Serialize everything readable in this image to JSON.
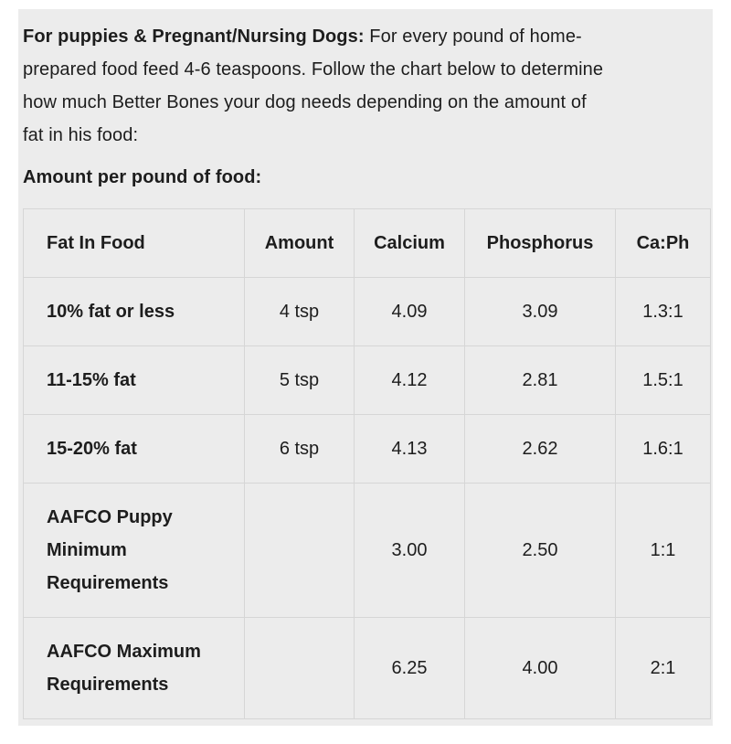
{
  "page": {
    "intro": {
      "lines": [
        {
          "bold": "For puppies & Pregnant/Nursing Dogs:",
          "text": " For every pound of home-"
        },
        {
          "bold": "",
          "text": "prepared food feed 4-6 teaspoons. Follow the chart below to determine"
        },
        {
          "bold": "",
          "text": "how much Better Bones your dog needs depending on the amount of"
        },
        {
          "bold": "",
          "text": "fat in his food:"
        }
      ]
    },
    "subheading": "Amount per pound of food:"
  },
  "table": {
    "headers": [
      "Fat In Food",
      "Amount",
      "Calcium",
      "Phosphorus",
      "Ca:Ph"
    ],
    "rows": [
      {
        "fat": "10% fat or less",
        "amount": "4 tsp",
        "calcium": "4.09",
        "phosphorus": "3.09",
        "ratio": "1.3:1"
      },
      {
        "fat": "11-15% fat",
        "amount": "5 tsp",
        "calcium": "4.12",
        "phosphorus": "2.81",
        "ratio": "1.5:1"
      },
      {
        "fat": "15-20% fat",
        "amount": "6 tsp",
        "calcium": "4.13",
        "phosphorus": "2.62",
        "ratio": "1.6:1"
      },
      {
        "fat": "AAFCO Puppy Minimum Requirements",
        "amount": "",
        "calcium": "3.00",
        "phosphorus": "2.50",
        "ratio": "1:1"
      },
      {
        "fat": "AAFCO Maximum Requirements",
        "amount": "",
        "calcium": "6.25",
        "phosphorus": "4.00",
        "ratio": "2:1"
      }
    ]
  },
  "colors": {
    "panel_background": "#ececec",
    "table_border": "#d6d6d6",
    "text": "#1d1d1d",
    "page_background": "#ffffff"
  }
}
